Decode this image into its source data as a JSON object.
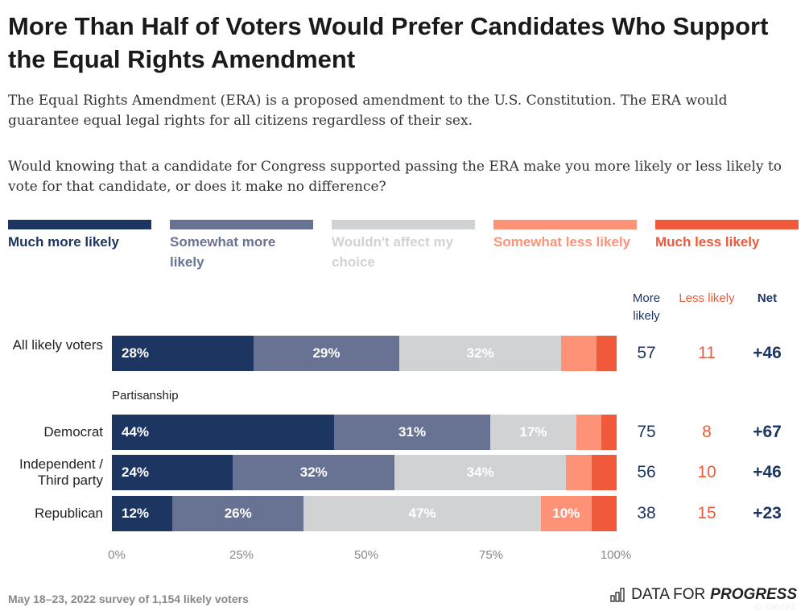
{
  "title": "More Than Half of Voters Would Prefer Candidates Who Support the Equal Rights Amendment",
  "description": "The Equal Rights Amendment (ERA) is a proposed amendment to the U.S. Constitution. The ERA would guarantee equal legal rights for all citizens regardless of their sex.",
  "question": "Would knowing that a candidate for Congress supported passing the ERA make you more likely or less likely to vote for that candidate, or does it make no difference?",
  "footer": "May 18–23, 2022 survey of 1,154 likely voters",
  "logo": {
    "text1": "DATA FOR",
    "text2": "PROGRESS",
    "watermark": "ID: EWV5PZ"
  },
  "chart_data": {
    "type": "bar",
    "orientation": "horizontal-stacked",
    "legend_placement": "top",
    "series": [
      {
        "name": "Much more likely",
        "color": "#1c3661"
      },
      {
        "name": "Somewhat more likely",
        "color": "#687293"
      },
      {
        "name": "Wouldn't affect my choice",
        "color": "#d1d2d4"
      },
      {
        "name": "Somewhat less likely",
        "color": "#fe9277"
      },
      {
        "name": "Much less likely",
        "color": "#f05a3b"
      }
    ],
    "columns": {
      "more": "More likely",
      "less": "Less likely",
      "net": "Net"
    },
    "group_label": "Partisanship",
    "rows": [
      {
        "label": "All likely voters",
        "values": [
          28,
          29,
          32,
          7,
          4
        ],
        "labels": [
          "28%",
          "29%",
          "32%",
          "",
          ""
        ],
        "more": "57",
        "less": "11",
        "net": "+46"
      },
      {
        "label": "Democrat",
        "values": [
          44,
          31,
          17,
          5,
          3
        ],
        "labels": [
          "44%",
          "31%",
          "17%",
          "",
          ""
        ],
        "more": "75",
        "less": "8",
        "net": "+67"
      },
      {
        "label": "Independent / Third party",
        "values": [
          24,
          32,
          34,
          5,
          5
        ],
        "labels": [
          "24%",
          "32%",
          "34%",
          "",
          ""
        ],
        "more": "56",
        "less": "10",
        "net": "+46"
      },
      {
        "label": "Republican",
        "values": [
          12,
          26,
          47,
          10,
          5
        ],
        "labels": [
          "12%",
          "26%",
          "47%",
          "10%",
          ""
        ],
        "more": "38",
        "less": "15",
        "net": "+23"
      }
    ],
    "xticks": [
      "0%",
      "25%",
      "50%",
      "75%",
      "100%"
    ],
    "xlim": [
      0,
      100
    ]
  }
}
